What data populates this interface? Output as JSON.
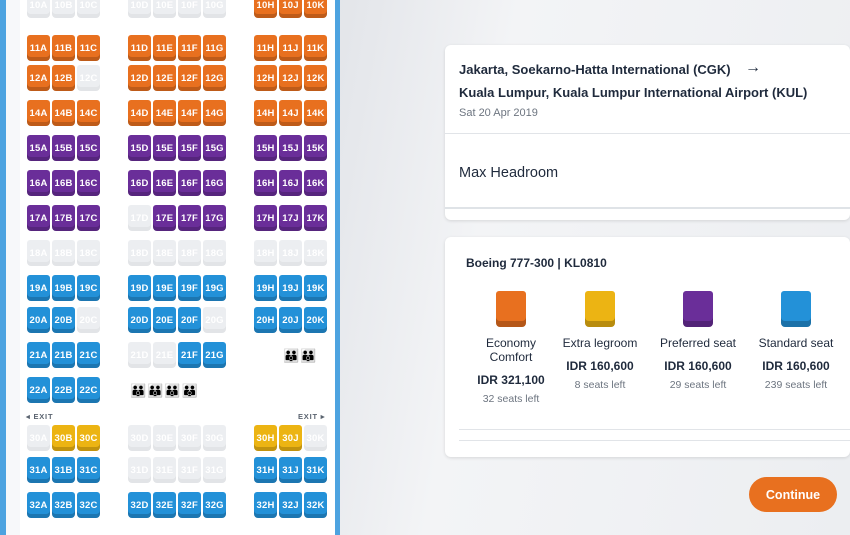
{
  "colors": {
    "economy_comfort": "#e8701f",
    "extra_legroom": "#ecb413",
    "preferred": "#6a2e99",
    "standard": "#2391d8",
    "unavailable": "#eceef1",
    "fuselage": "#4da3e0",
    "continue": "#e8701f"
  },
  "flight": {
    "from": "Jakarta, Soekarno-Hatta International (CGK)",
    "arrow_icon": "arrow-right-icon",
    "to": "Kuala Lumpur, Kuala Lumpur International Airport (KUL)",
    "date": "Sat 20 Apr 2019",
    "selected_seat_label": "Max Headroom"
  },
  "legend": {
    "aircraft": "Boeing 777-300 | KL0810",
    "items": [
      {
        "key": "economy_comfort",
        "name": "Economy Comfort",
        "price": "IDR 321,100",
        "left": "32 seats left"
      },
      {
        "key": "extra_legroom",
        "name": "Extra legroom",
        "price": "IDR 160,600",
        "left": "8 seats left"
      },
      {
        "key": "preferred",
        "name": "Preferred seat",
        "price": "IDR 160,600",
        "left": "29 seats left"
      },
      {
        "key": "standard",
        "name": "Standard seat",
        "price": "IDR 160,600",
        "left": "239 seats left"
      }
    ]
  },
  "continue_label": "Continue",
  "exit_label_left": "EXIT",
  "exit_label_right": "EXIT",
  "seat_map": {
    "columns": [
      "A",
      "B",
      "C",
      "D",
      "E",
      "F",
      "G",
      "H",
      "J",
      "K"
    ],
    "rows": [
      {
        "row": 10,
        "seats": [
          "u",
          "u",
          "u",
          "u",
          "u",
          "u",
          "u",
          "o",
          "o",
          "o"
        ]
      },
      {
        "row": 11,
        "seats": [
          "o",
          "o",
          "o",
          "o",
          "o",
          "o",
          "o",
          "o",
          "o",
          "o"
        ]
      },
      {
        "row": 12,
        "seats": [
          "o",
          "o",
          "u",
          "o",
          "o",
          "o",
          "o",
          "o",
          "o",
          "o"
        ]
      },
      {
        "row": 14,
        "seats": [
          "o",
          "o",
          "o",
          "o",
          "o",
          "o",
          "o",
          "o",
          "o",
          "o"
        ]
      },
      {
        "row": 15,
        "seats": [
          "p",
          "p",
          "p",
          "p",
          "p",
          "p",
          "p",
          "p",
          "p",
          "p"
        ]
      },
      {
        "row": 16,
        "seats": [
          "p",
          "p",
          "p",
          "p",
          "p",
          "p",
          "p",
          "p",
          "p",
          "p"
        ]
      },
      {
        "row": 17,
        "seats": [
          "p",
          "p",
          "p",
          "u",
          "p",
          "p",
          "p",
          "p",
          "p",
          "p"
        ]
      },
      {
        "row": 18,
        "seats": [
          "u",
          "u",
          "u",
          "u",
          "u",
          "u",
          "u",
          "u",
          "u",
          "u"
        ]
      },
      {
        "row": 19,
        "seats": [
          "b",
          "b",
          "b",
          "b",
          "b",
          "b",
          "b",
          "b",
          "b",
          "b"
        ]
      },
      {
        "row": 20,
        "seats": [
          "b",
          "b",
          "u",
          "b",
          "b",
          "b",
          "u",
          "b",
          "b",
          "b"
        ]
      },
      {
        "row": 21,
        "seats": [
          "b",
          "b",
          "b",
          "u",
          "u",
          "b",
          "b",
          "-",
          "-",
          "-"
        ]
      },
      {
        "row": 22,
        "seats": [
          "b",
          "b",
          "b",
          "-",
          "-",
          "-",
          "-",
          "-",
          "-",
          "-"
        ]
      },
      {
        "row": 30,
        "seats": [
          "u",
          "y",
          "y",
          "u",
          "u",
          "u",
          "u",
          "y",
          "y",
          "u"
        ]
      },
      {
        "row": 31,
        "seats": [
          "b",
          "b",
          "b",
          "u",
          "u",
          "u",
          "u",
          "b",
          "b",
          "b"
        ]
      },
      {
        "row": 32,
        "seats": [
          "b",
          "b",
          "b",
          "b",
          "b",
          "b",
          "b",
          "b",
          "b",
          "b"
        ]
      }
    ]
  },
  "lavatory_icon": "lavatory-icon",
  "lavatory_symbol": "🚻"
}
